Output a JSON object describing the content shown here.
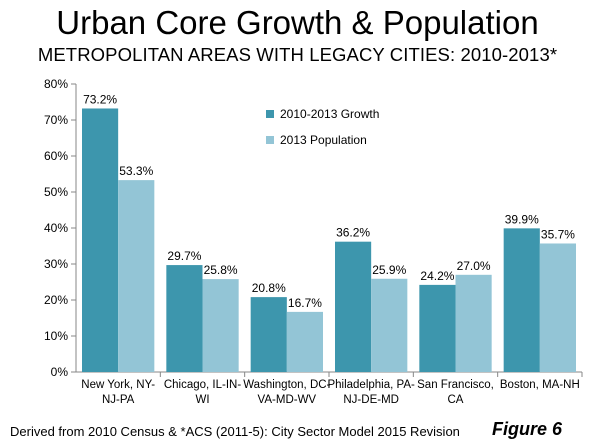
{
  "title": "Urban Core Growth & Population",
  "subtitle": "METROPOLITAN AREAS WITH LEGACY CITIES: 2010-2013*",
  "footer_note": "Derived from 2010 Census & *ACS (2011-5): City Sector Model 2015 Revision",
  "figure_label": "Figure 6",
  "colors": {
    "growth": "#3d96ad",
    "population": "#93c5d6"
  },
  "chart_data": {
    "type": "bar",
    "categories": [
      [
        "New York, NY-",
        "NJ-PA"
      ],
      [
        "Chicago, IL-IN-",
        "WI"
      ],
      [
        "Washington, DC-",
        "VA-MD-WV"
      ],
      [
        "Philadelphia, PA-",
        "NJ-DE-MD"
      ],
      [
        "San Francisco,",
        "CA"
      ],
      [
        "Boston, MA-NH"
      ]
    ],
    "series": [
      {
        "name": "2010-2013 Growth",
        "values": [
          73.2,
          29.7,
          20.8,
          36.2,
          24.2,
          39.9
        ],
        "labels": [
          "73.2%",
          "29.7%",
          "20.8%",
          "36.2%",
          "24.2%",
          "39.9%"
        ]
      },
      {
        "name": "2013 Population",
        "values": [
          53.3,
          25.8,
          16.7,
          25.9,
          27.0,
          35.7
        ],
        "labels": [
          "53.3%",
          "25.8%",
          "16.7%",
          "25.9%",
          "27.0%",
          "35.7%"
        ]
      }
    ],
    "ylim": [
      0,
      80
    ],
    "yticks": [
      "0%",
      "10%",
      "20%",
      "30%",
      "40%",
      "50%",
      "60%",
      "70%",
      "80%"
    ],
    "grid": false,
    "legend_position": "top-center"
  }
}
